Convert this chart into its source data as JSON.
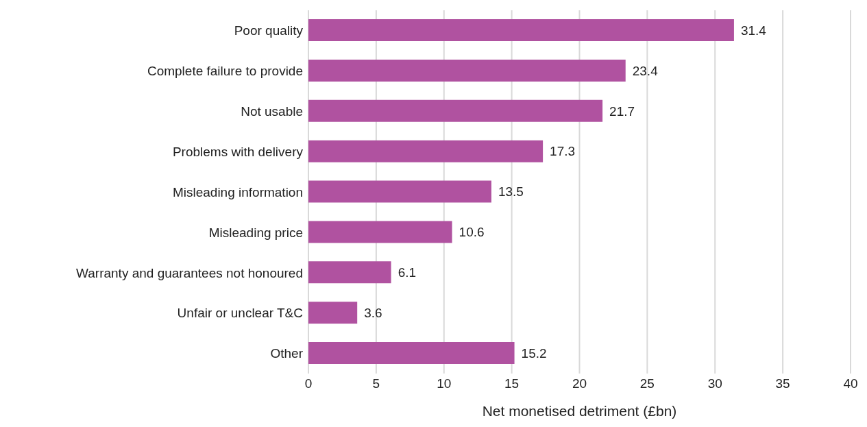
{
  "chart_data": {
    "type": "bar",
    "orientation": "horizontal",
    "categories": [
      "Poor quality",
      "Complete failure to provide",
      "Not usable",
      "Problems with delivery",
      "Misleading information",
      "Misleading price",
      "Warranty and guarantees not honoured",
      "Unfair or unclear T&C",
      "Other"
    ],
    "values": [
      31.4,
      23.4,
      21.7,
      17.3,
      13.5,
      10.6,
      6.1,
      3.6,
      15.2
    ],
    "color": "#b052a0",
    "xlim": [
      0,
      40
    ],
    "xticks": [
      0,
      5,
      10,
      15,
      20,
      25,
      30,
      35,
      40
    ],
    "xlabel": "Net monetised detriment (£bn)",
    "grid": "x",
    "data_labels": true
  }
}
